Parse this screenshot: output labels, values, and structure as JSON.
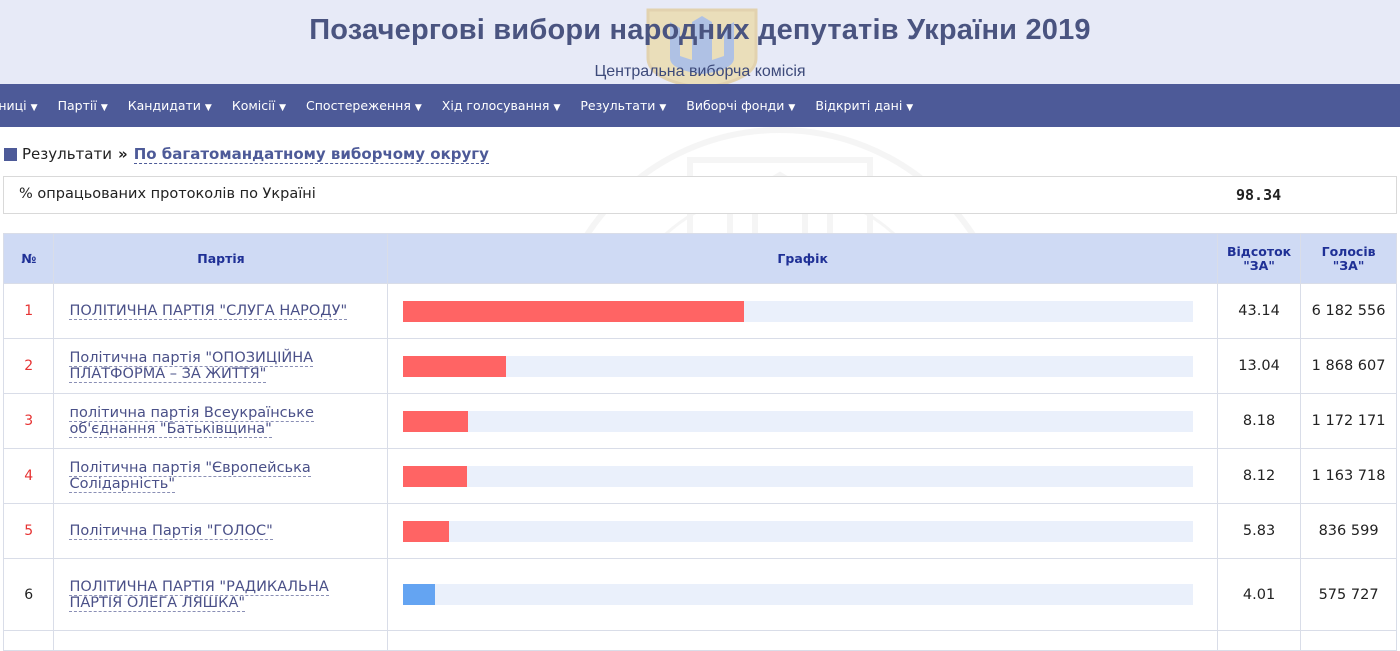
{
  "header": {
    "title": "Позачергові вибори народних депутатів України 2019",
    "subtitle": "Центральна виборча комісія"
  },
  "nav": {
    "items": [
      {
        "label": "ьниці",
        "icon": "caret-down-icon"
      },
      {
        "label": "Партії",
        "icon": "caret-down-icon"
      },
      {
        "label": "Кандидати",
        "icon": "caret-down-icon"
      },
      {
        "label": "Комісії",
        "icon": "caret-down-icon"
      },
      {
        "label": "Спостереження",
        "icon": "caret-down-icon"
      },
      {
        "label": "Хід голосування",
        "icon": "caret-down-icon"
      },
      {
        "label": "Результати",
        "icon": "caret-down-icon"
      },
      {
        "label": "Виборчі фонди",
        "icon": "caret-down-icon"
      },
      {
        "label": "Відкриті дані",
        "icon": "caret-down-icon"
      }
    ]
  },
  "breadcrumb": {
    "root": "Результати",
    "separator": "»",
    "current": "По багатомандатному виборчому округу"
  },
  "processed": {
    "label": "% опрацьованих протоколів по Україні",
    "value": "98.34"
  },
  "table": {
    "headers": {
      "num": "№",
      "party": "Партія",
      "chart": "Графік",
      "percent_line1": "Відсоток",
      "percent_line2": "\"ЗА\"",
      "votes_line1": "Голосів",
      "votes_line2": "\"ЗА\""
    },
    "colors": {
      "passed_bar": "#ff6464",
      "failed_bar": "#64a4f2",
      "passed_number": "#e63333",
      "track": "#eaf0fb"
    },
    "rows": [
      {
        "num": "1",
        "party": "ПОЛІТИЧНА ПАРТІЯ \"СЛУГА НАРОДУ\"",
        "percent": "43.14",
        "votes": "6 182 556",
        "share": 43.14,
        "passed": true
      },
      {
        "num": "2",
        "party": "Політична партія \"ОПОЗИЦІЙНА ПЛАТФОРМА – ЗА ЖИТТЯ\"",
        "percent": "13.04",
        "votes": "1 868 607",
        "share": 13.04,
        "passed": true
      },
      {
        "num": "3",
        "party": "політична партія Всеукраїнське об'єднання \"Батьківщина\"",
        "percent": "8.18",
        "votes": "1 172 171",
        "share": 8.18,
        "passed": true
      },
      {
        "num": "4",
        "party": "Політична партія \"Європейська Солідарність\"",
        "percent": "8.12",
        "votes": "1 163 718",
        "share": 8.12,
        "passed": true
      },
      {
        "num": "5",
        "party": "Політична Партія \"ГОЛОС\"",
        "percent": "5.83",
        "votes": "836 599",
        "share": 5.83,
        "passed": true
      },
      {
        "num": "6",
        "party": "ПОЛІТИЧНА ПАРТІЯ \"РАДИКАЛЬНА ПАРТІЯ ОЛЕГА ЛЯШКА\"",
        "percent": "4.01",
        "votes": "575 727",
        "share": 4.01,
        "passed": false
      }
    ]
  }
}
